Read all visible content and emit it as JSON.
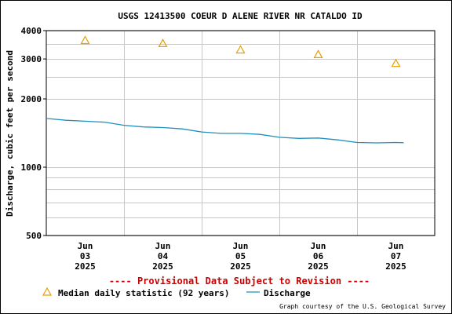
{
  "chart_data": {
    "type": "line",
    "title": "USGS 12413500 COEUR D ALENE RIVER NR CATALDO ID",
    "ylabel": "Discharge, cubic feet per second",
    "xlabel": "",
    "yscale": "log",
    "ylim": [
      500,
      4000
    ],
    "y_ticks": [
      {
        "value": 500,
        "label": "500"
      },
      {
        "value": 1000,
        "label": "1000"
      },
      {
        "value": 2000,
        "label": "2000"
      },
      {
        "value": 3000,
        "label": "3000"
      },
      {
        "value": 4000,
        "label": "4000"
      }
    ],
    "y_minor": [
      600,
      700,
      800,
      900,
      2500,
      3500
    ],
    "x_unit": "day",
    "xlim": [
      2.5,
      7.5
    ],
    "x_ticks": [
      {
        "value": 3,
        "month": "Jun",
        "day": "03",
        "year": "2025"
      },
      {
        "value": 4,
        "month": "Jun",
        "day": "04",
        "year": "2025"
      },
      {
        "value": 5,
        "month": "Jun",
        "day": "05",
        "year": "2025"
      },
      {
        "value": 6,
        "month": "Jun",
        "day": "06",
        "year": "2025"
      },
      {
        "value": 7,
        "month": "Jun",
        "day": "07",
        "year": "2025"
      }
    ],
    "grid": true,
    "series": [
      {
        "name": "Discharge",
        "kind": "line",
        "color": "#1f8fbf",
        "points": [
          [
            2.5,
            1640
          ],
          [
            2.75,
            1610
          ],
          [
            3.0,
            1595
          ],
          [
            3.25,
            1580
          ],
          [
            3.5,
            1530
          ],
          [
            3.75,
            1505
          ],
          [
            4.0,
            1495
          ],
          [
            4.25,
            1475
          ],
          [
            4.5,
            1430
          ],
          [
            4.75,
            1410
          ],
          [
            5.0,
            1410
          ],
          [
            5.25,
            1395
          ],
          [
            5.5,
            1355
          ],
          [
            5.75,
            1340
          ],
          [
            6.0,
            1345
          ],
          [
            6.25,
            1320
          ],
          [
            6.5,
            1285
          ],
          [
            6.75,
            1280
          ],
          [
            7.0,
            1285
          ],
          [
            7.1,
            1282
          ]
        ]
      },
      {
        "name": "Median daily statistic (92 years)",
        "kind": "marker",
        "marker": "triangle",
        "color": "#e8a000",
        "points": [
          [
            3.0,
            3620
          ],
          [
            4.0,
            3510
          ],
          [
            5.0,
            3290
          ],
          [
            6.0,
            3140
          ],
          [
            7.0,
            2870
          ]
        ]
      }
    ],
    "legend": {
      "placement": "bottom",
      "median_label": "Median daily statistic (92 years)",
      "discharge_label": "Discharge"
    },
    "provisional_note": "---- Provisional Data Subject to Revision ----",
    "credit": "Graph courtesy of the U.S. Geological Survey"
  }
}
